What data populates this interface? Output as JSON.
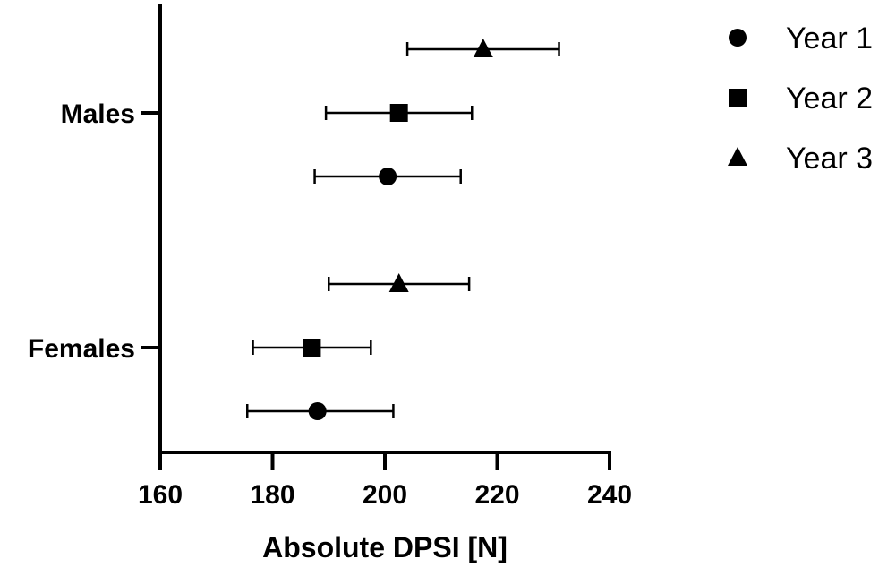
{
  "chart_data": {
    "type": "scatter",
    "orientation": "horizontal",
    "title": "",
    "xlabel": "Absolute DPSI [N]",
    "ylabel": "",
    "xlim": [
      160,
      240
    ],
    "xticks": [
      160,
      180,
      200,
      220,
      240
    ],
    "categories": [
      "Males",
      "Females"
    ],
    "legend_position": "top-right",
    "grid": false,
    "series": [
      {
        "name": "Year 1",
        "marker": "circle-icon",
        "points": [
          {
            "category": "Males",
            "mean": 200.5,
            "low": 187.5,
            "high": 213.5
          },
          {
            "category": "Females",
            "mean": 188.0,
            "low": 175.5,
            "high": 201.5
          }
        ]
      },
      {
        "name": "Year 2",
        "marker": "square-icon",
        "points": [
          {
            "category": "Males",
            "mean": 202.5,
            "low": 189.5,
            "high": 215.5
          },
          {
            "category": "Females",
            "mean": 187.0,
            "low": 176.5,
            "high": 197.5
          }
        ]
      },
      {
        "name": "Year 3",
        "marker": "triangle-icon",
        "points": [
          {
            "category": "Males",
            "mean": 217.5,
            "low": 204.0,
            "high": 231.0
          },
          {
            "category": "Females",
            "mean": 202.5,
            "low": 190.0,
            "high": 215.0
          }
        ]
      }
    ]
  }
}
